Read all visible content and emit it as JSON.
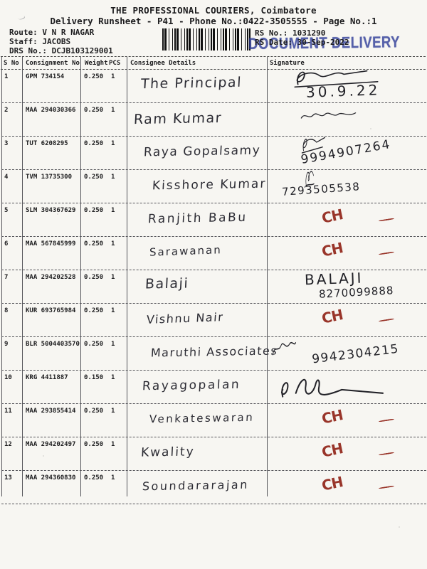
{
  "header": {
    "title": "THE PROFESSIONAL COURIERS, Coimbatore",
    "subtitle": "Delivery Runsheet - P41 - Phone No.:0422-3505555 - Page No.:1",
    "route_label": "Route:",
    "route_value": "V N R NAGAR",
    "staff_label": "Staff:",
    "staff_value": "JACOBS",
    "drs_label": "DRS No.:",
    "drs_value": "DCJB103129001",
    "rs_no_label": "RS No.:",
    "rs_no_value": "1031290",
    "rs_date_label": "RS Date:",
    "rs_date_value": "30-Sep-2022",
    "stamp_text": "DOCUMENT DELIVERY",
    "barcode_icon": "barcode"
  },
  "colors": {
    "stamp_blue": "#2d3b98",
    "red_ink": "#99352a",
    "black_ink": "#222228"
  },
  "table": {
    "columns": [
      "S No",
      "Consignment No",
      "Weight",
      "PCS",
      "Consignee Details",
      "Signature"
    ],
    "rows": [
      {
        "sno": "1",
        "consignment": "GPM 734154",
        "weight": "0.250",
        "pcs": "1",
        "consignee": "The Principal",
        "signature": {
          "scribble": true,
          "note": "30.9.22"
        }
      },
      {
        "sno": "2",
        "consignment": "MAA 294030366",
        "weight": "0.250",
        "pcs": "1",
        "consignee": "Ram Kumar",
        "signature": {
          "scribble": true
        }
      },
      {
        "sno": "3",
        "consignment": "TUT 6208295",
        "weight": "0.250",
        "pcs": "1",
        "consignee": "Raya Gopalsamy",
        "signature": {
          "scribble": true,
          "note": "9994907264"
        }
      },
      {
        "sno": "4",
        "consignment": "TVM 13735300",
        "weight": "0.250",
        "pcs": "1",
        "consignee": "Kisshore Kumar",
        "signature": {
          "scribble": true,
          "note": "7293505538"
        }
      },
      {
        "sno": "5",
        "consignment": "SLM 304367629",
        "weight": "0.250",
        "pcs": "1",
        "consignee": "Ranjith BaBu",
        "signature": {
          "mark": "CH",
          "dash": true
        }
      },
      {
        "sno": "6",
        "consignment": "MAA 567845999",
        "weight": "0.250",
        "pcs": "1",
        "consignee": "Sarawanan",
        "signature": {
          "mark": "CH",
          "dash": true
        }
      },
      {
        "sno": "7",
        "consignment": "MAA 294202528",
        "weight": "0.250",
        "pcs": "1",
        "consignee": "Balaji",
        "signature": {
          "print": "BALAJI",
          "note": "8270099888"
        }
      },
      {
        "sno": "8",
        "consignment": "KUR 693765984",
        "weight": "0.250",
        "pcs": "1",
        "consignee": "Vishnu Nair",
        "signature": {
          "mark": "CH",
          "dash": true
        }
      },
      {
        "sno": "9",
        "consignment": "BLR 5004403570",
        "weight": "0.250",
        "pcs": "1",
        "consignee": "Maruthi Associates",
        "signature": {
          "scribble": true,
          "note": "9942304215"
        }
      },
      {
        "sno": "10",
        "consignment": "KRG 4411887",
        "weight": "0.150",
        "pcs": "1",
        "consignee": "Rayagopalan",
        "signature": {
          "scribble": true
        }
      },
      {
        "sno": "11",
        "consignment": "MAA 293855414",
        "weight": "0.250",
        "pcs": "1",
        "consignee": "Venkateswaran",
        "signature": {
          "mark": "CH",
          "dash": true
        }
      },
      {
        "sno": "12",
        "consignment": "MAA 294202497",
        "weight": "0.250",
        "pcs": "1",
        "consignee": "Kwality",
        "signature": {
          "mark": "CH",
          "dash": true
        }
      },
      {
        "sno": "13",
        "consignment": "MAA 294360830",
        "weight": "0.250",
        "pcs": "1",
        "consignee": "Soundararajan",
        "signature": {
          "mark": "CH",
          "dash": true
        }
      }
    ]
  }
}
